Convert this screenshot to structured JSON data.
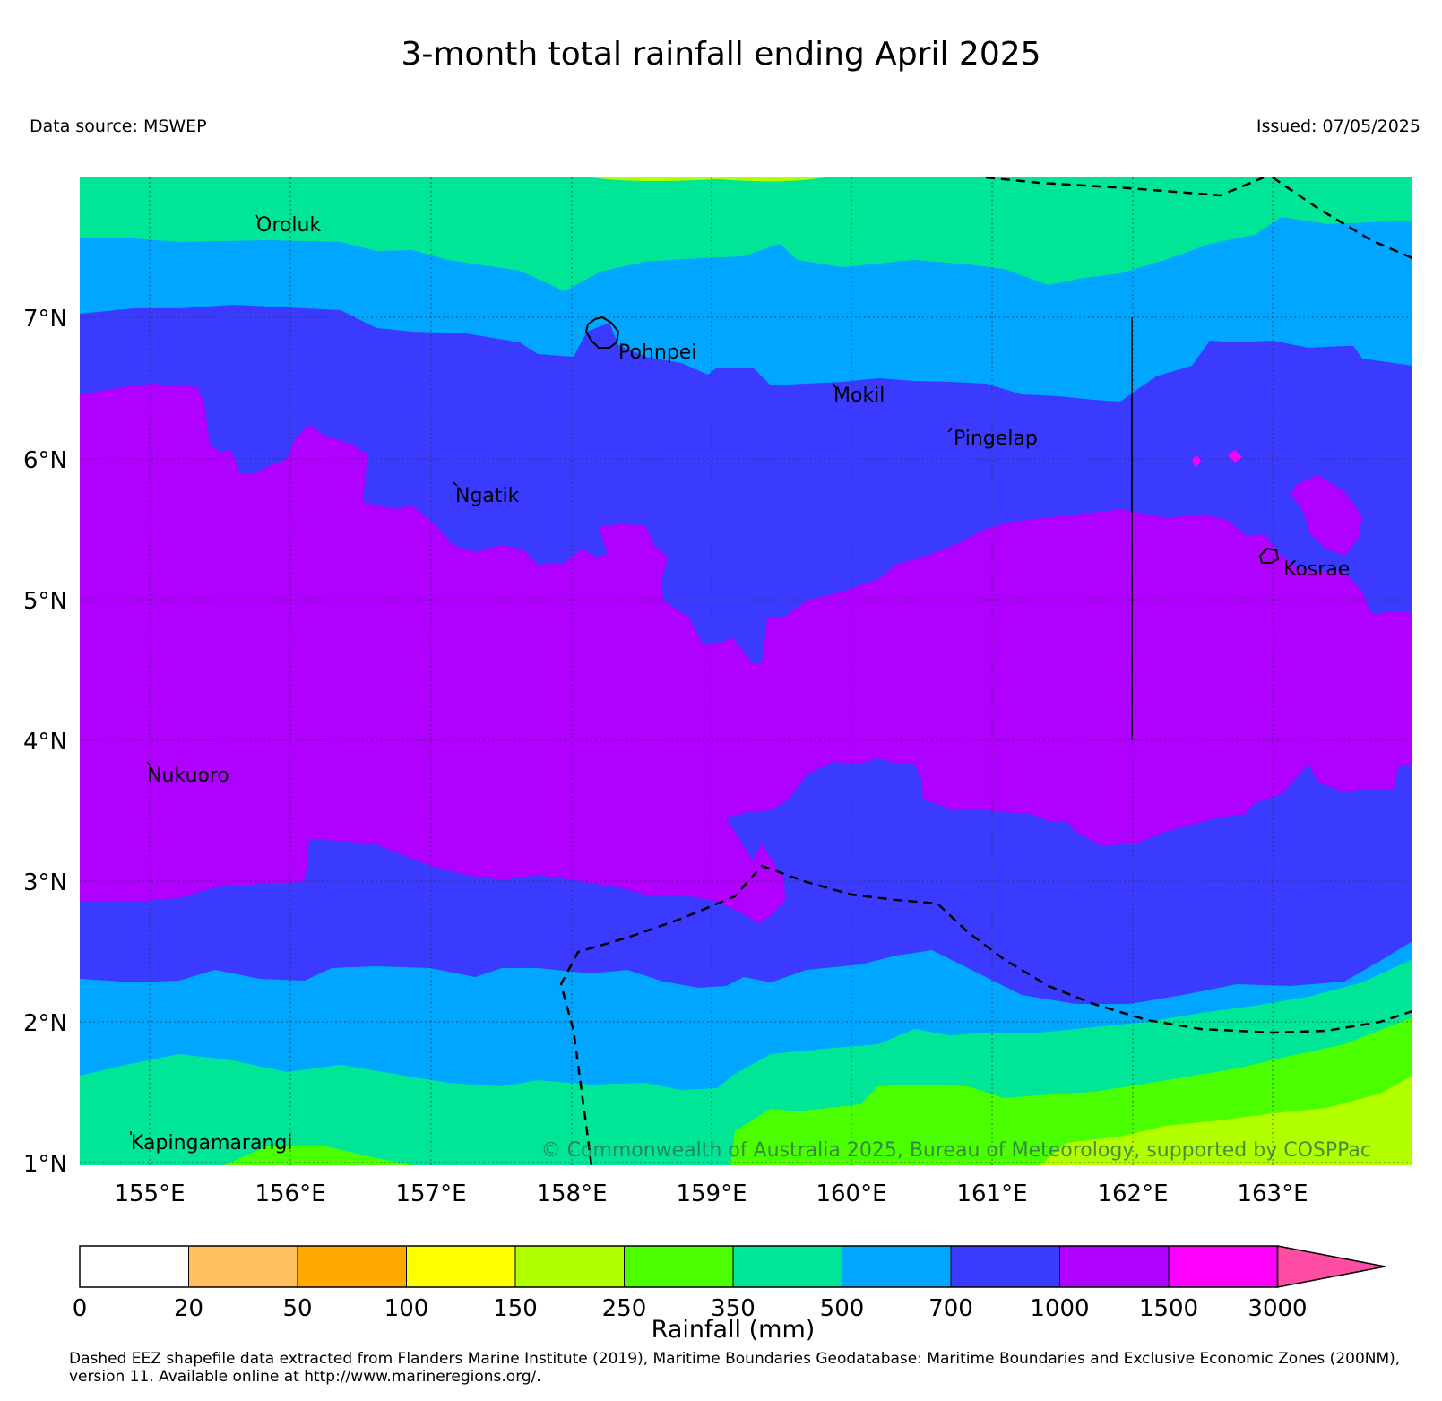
{
  "title": "3-month total rainfall ending April 2025",
  "data_source": "Data source: MSWEP",
  "issued": "Issued: 07/05/2025",
  "copyright": "© Commonwealth of Australia 2025, Bureau of Meteorology, supported by COSPPac",
  "colorbar_label": "Rainfall (mm)",
  "footer": "Dashed EEZ shapefile data extracted from Flanders Marine Institute (2019), Maritime Boundaries Geodatabase: Maritime Boundaries and Exclusive Economic Zones (200NM), version 11. Available online at http://www.marineregions.org/.",
  "lat_ticks": [
    "7°N",
    "6°N",
    "5°N",
    "4°N",
    "3°N",
    "2°N",
    "1°N"
  ],
  "lon_ticks": [
    "155°E",
    "156°E",
    "157°E",
    "158°E",
    "159°E",
    "160°E",
    "161°E",
    "162°E",
    "163°E"
  ],
  "places": [
    "Oroluk",
    "Pohnpei",
    "Mokil",
    "Pingelap",
    "Ngatik",
    "Kosrae",
    "Nukuoro",
    "Kapingamarangi"
  ],
  "legend": {
    "ticks": [
      "0",
      "20",
      "50",
      "100",
      "150",
      "250",
      "350",
      "500",
      "700",
      "1000",
      "1500",
      "3000"
    ],
    "colors": [
      "#ffffff",
      "#ffbf5f",
      "#ffaa00",
      "#ffff00",
      "#b2ff00",
      "#4cff00",
      "#00e696",
      "#00a6ff",
      "#3b3bff",
      "#b000ff",
      "#ff00ff"
    ],
    "extend_color": "#ff4da6"
  },
  "colors": {
    "band_250": "#4cff00",
    "band_150": "#b2ff00",
    "band_350": "#00e696",
    "band_500": "#00a6ff",
    "band_700": "#3b3bff",
    "band_1000": "#b000ff",
    "band_1500": "#ff00ff"
  }
}
